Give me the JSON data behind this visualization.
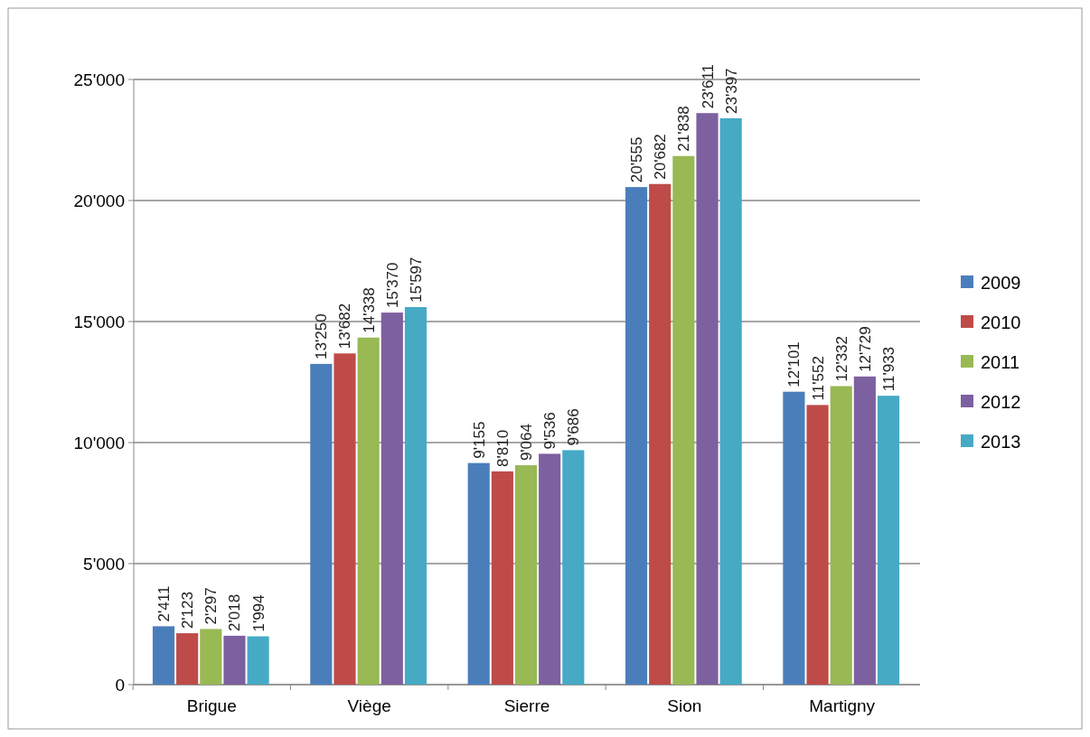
{
  "chart_data": {
    "type": "bar",
    "categories": [
      "Brigue",
      "Viège",
      "Sierre",
      "Sion",
      "Martigny"
    ],
    "series": [
      {
        "name": "2009",
        "color": "#4a7ebb",
        "values": [
          2411,
          13250,
          9155,
          20555,
          12101
        ],
        "value_labels": [
          "2'411",
          "13'250",
          "9'155",
          "20'555",
          "12'101"
        ]
      },
      {
        "name": "2010",
        "color": "#be4b48",
        "values": [
          2123,
          13682,
          8810,
          20682,
          11552
        ],
        "value_labels": [
          "2'123",
          "13'682",
          "8'810",
          "20'682",
          "11'552"
        ]
      },
      {
        "name": "2011",
        "color": "#98b954",
        "values": [
          2297,
          14338,
          9064,
          21838,
          12332
        ],
        "value_labels": [
          "2'297",
          "14'338",
          "9'064",
          "21'838",
          "12'332"
        ]
      },
      {
        "name": "2012",
        "color": "#7d60a0",
        "values": [
          2018,
          15370,
          9536,
          23611,
          12729
        ],
        "value_labels": [
          "2'018",
          "15'370",
          "9'536",
          "23'611",
          "12'729"
        ]
      },
      {
        "name": "2013",
        "color": "#46aac5",
        "values": [
          1994,
          15597,
          9686,
          23397,
          11933
        ],
        "value_labels": [
          "1'994",
          "15'597",
          "9'686",
          "23'397",
          "11'933"
        ]
      }
    ],
    "ylim": [
      0,
      25000
    ],
    "yticks": [
      {
        "value": 0,
        "label": "0"
      },
      {
        "value": 5000,
        "label": "5'000"
      },
      {
        "value": 10000,
        "label": "10'000"
      },
      {
        "value": 15000,
        "label": "15'000"
      },
      {
        "value": 20000,
        "label": "20'000"
      },
      {
        "value": 25000,
        "label": "25'000"
      }
    ],
    "grid": "y",
    "legend": "right"
  }
}
